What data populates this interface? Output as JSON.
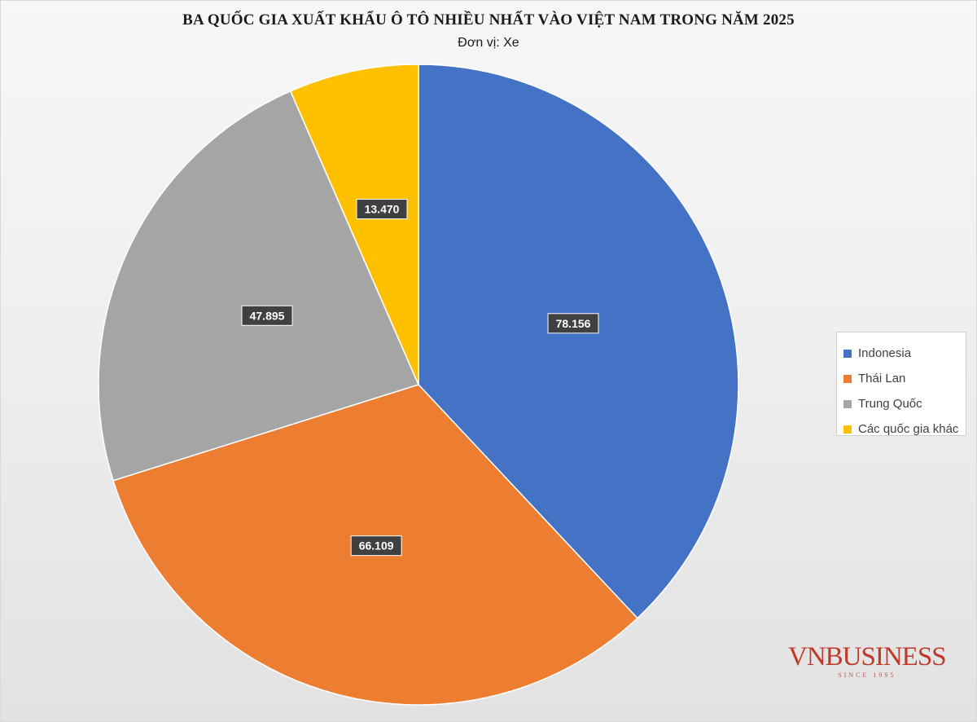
{
  "chart_data": {
    "type": "pie",
    "title": "BA QUỐC GIA XUẤT KHẨU Ô TÔ NHIỀU NHẤT VÀO VIỆT NAM TRONG NĂM 2025",
    "subtitle": "Đơn vị: Xe",
    "categories": [
      "Indonesia",
      "Thái Lan",
      "Trung Quốc",
      "Các quốc gia khác"
    ],
    "values": [
      78156,
      66109,
      47895,
      13470
    ],
    "data_labels": [
      "78.156",
      "66.109",
      "47.895",
      "13.470"
    ],
    "colors": [
      "#4472C4",
      "#ED7D31",
      "#A5A5A5",
      "#FFC000"
    ],
    "start_angle_deg": 0,
    "direction": "clockwise",
    "legend_position": "right"
  },
  "logo": {
    "text": "VNBUSINESS",
    "since": "SINCE 1995"
  }
}
